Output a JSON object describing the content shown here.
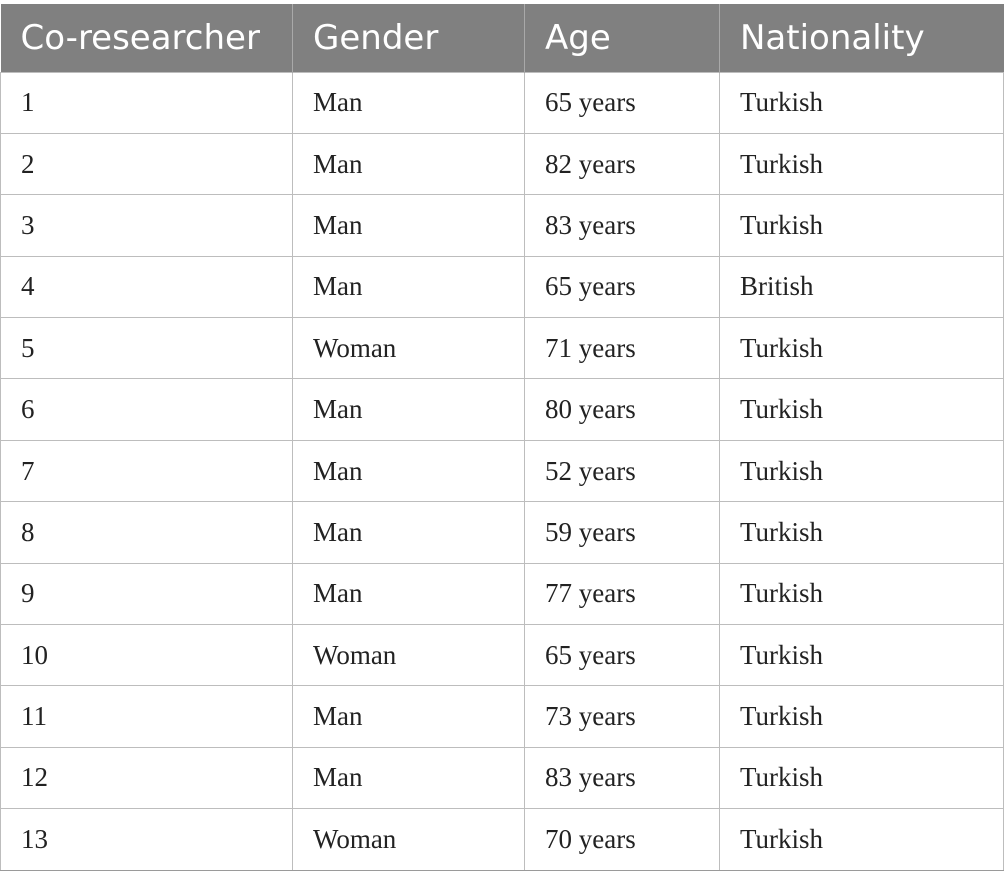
{
  "table": {
    "headers": [
      "Co-researcher",
      "Gender",
      "Age",
      "Nationality"
    ],
    "rows": [
      [
        "1",
        "Man",
        "65 years",
        "Turkish"
      ],
      [
        "2",
        "Man",
        "82 years",
        "Turkish"
      ],
      [
        "3",
        "Man",
        "83 years",
        "Turkish"
      ],
      [
        "4",
        "Man",
        "65 years",
        "British"
      ],
      [
        "5",
        "Woman",
        "71 years",
        "Turkish"
      ],
      [
        "6",
        "Man",
        "80 years",
        "Turkish"
      ],
      [
        "7",
        "Man",
        "52 years",
        "Turkish"
      ],
      [
        "8",
        "Man",
        "59 years",
        "Turkish"
      ],
      [
        "9",
        "Man",
        "77 years",
        "Turkish"
      ],
      [
        "10",
        "Woman",
        "65 years",
        "Turkish"
      ],
      [
        "11",
        "Man",
        "73 years",
        "Turkish"
      ],
      [
        "12",
        "Man",
        "83 years",
        "Turkish"
      ],
      [
        "13",
        "Woman",
        "70 years",
        "Turkish"
      ]
    ]
  },
  "colors": {
    "header_background": "#808080",
    "header_text": "#ffffff",
    "grid_line": "#bdbdbd"
  }
}
